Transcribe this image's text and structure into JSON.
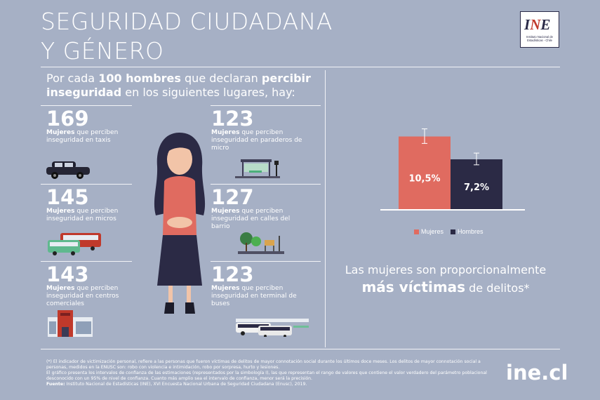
{
  "header": {
    "title_line1": "SEGURIDAD CIUDADANA",
    "title_line2": "Y GÉNERO",
    "logo_mark_1": "I",
    "logo_mark_2": "N",
    "logo_mark_3": "E",
    "logo_caption": "Instituto Nacional de Estadísticas - Chile"
  },
  "intro": {
    "part1": "Por cada ",
    "bold1": "100 hombres",
    "part2": " que declaran ",
    "bold2": "percibir inseguridad",
    "part3": " en los siguientes lugares, hay:"
  },
  "stats": [
    {
      "value": "169",
      "bold": "Mujeres",
      "text": " que perciben inseguridad en taxis",
      "icon": "taxi-icon"
    },
    {
      "value": "145",
      "bold": "Mujeres",
      "text": " que perciben inseguridad en micros",
      "icon": "bus-icon"
    },
    {
      "value": "143",
      "bold": "Mujeres",
      "text": " que perciben inseguridad en centros comerciales",
      "icon": "mall-icon"
    },
    {
      "value": "123",
      "bold": "Mujeres",
      "text": " que perciben inseguridad en paraderos de micro",
      "icon": "bus-stop-icon"
    },
    {
      "value": "127",
      "bold": "Mujeres",
      "text": " que perciben inseguridad en calles del barrio",
      "icon": "street-icon"
    },
    {
      "value": "123",
      "bold": "Mujeres",
      "text": " que perciben inseguridad en terminal de buses",
      "icon": "bus-terminal-icon"
    }
  ],
  "chart_data": {
    "type": "bar",
    "categories": [
      "Mujeres",
      "Hombres"
    ],
    "values": [
      10.5,
      7.2
    ],
    "value_labels": [
      "10,5%",
      "7,2%"
    ],
    "error_bars": [
      [
        9.5,
        11.6
      ],
      [
        6.4,
        8.1
      ]
    ],
    "colors": [
      "#e06b60",
      "#2b2a45"
    ],
    "legend": [
      "Mujeres",
      "Hombres"
    ],
    "ylim": [
      0,
      14
    ],
    "legend_position": "bottom"
  },
  "headline": {
    "line1": "Las mujeres son proporcionalmente",
    "bold": "más víctimas",
    "line2": " de delitos*"
  },
  "footnote": {
    "p1": "(*) El indicador de victimización personal, refiere a las personas que fueron víctimas de delitos de mayor connotación social durante los últimos doce meses. Los delitos de mayor connotación social a personas, medidos en la ENUSC son: robo con violencia e intimidación, robo por sorpresa, hurto y lesiones.",
    "p2": "El gráfico presenta los intervalos de confianza de las estimaciones (representados por la simbología Ⅰ), las que representan el rango de valores que contiene el valor verdadero del parámetro poblacional desconocido con un 95% de nivel de confianza. Cuanto más amplio sea el intervalo de confianza, menor será la precisión.",
    "source_label": "Fuente:",
    "source": " Instituto Nacional de Estadísticas (INE), XVI Encuesta Nacional Urbana de Seguridad Ciudadana (Enusc), 2019."
  },
  "site": "ine.cl"
}
